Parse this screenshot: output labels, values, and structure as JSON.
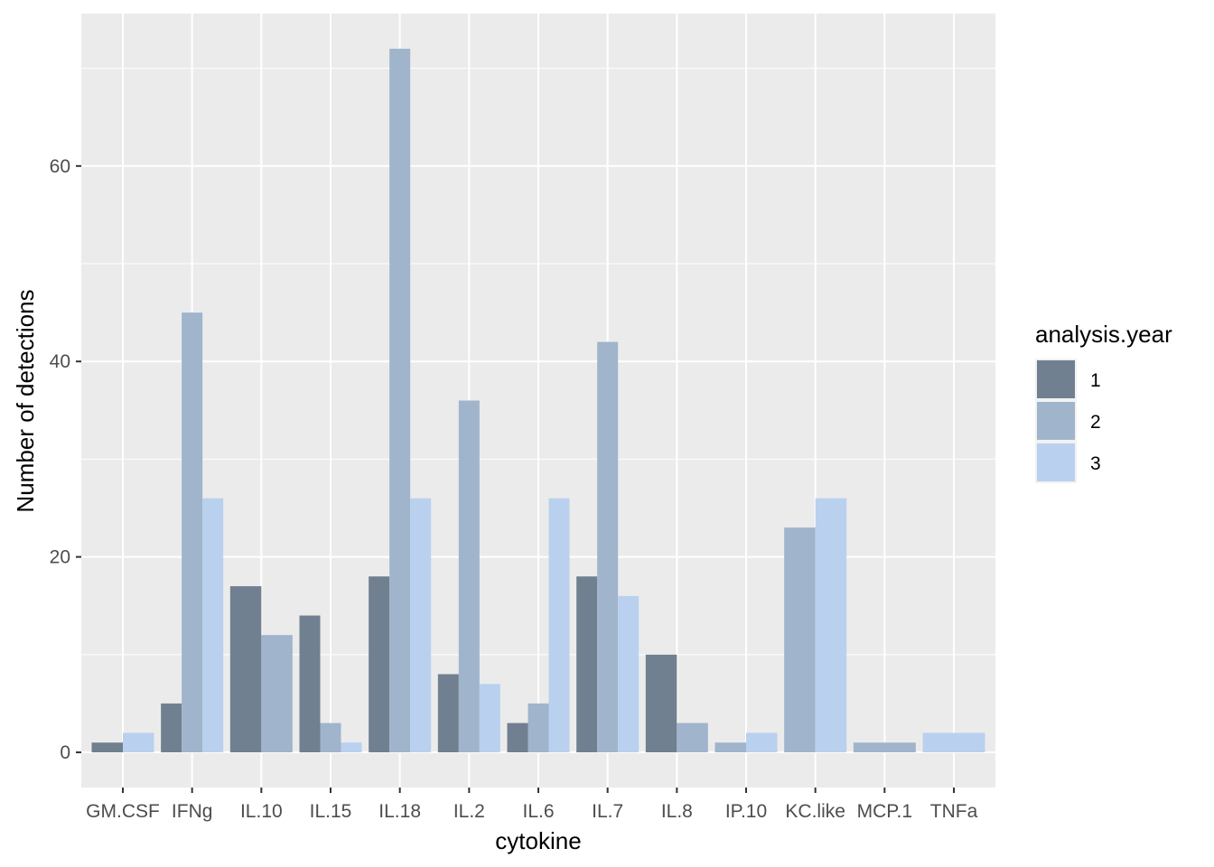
{
  "chart_data": {
    "type": "bar",
    "xlabel": "cytokine",
    "ylabel": "Number of detections",
    "ylim": [
      -3.6,
      75.6
    ],
    "yticks": [
      0,
      20,
      40,
      60
    ],
    "grid": true,
    "legend": {
      "title": "analysis.year",
      "placement": "right"
    },
    "series_colors": [
      "#708090",
      "#A0B4CC",
      "#B9D1EE"
    ],
    "categories": [
      "GM.CSF",
      "IFNg",
      "IL.10",
      "IL.15",
      "IL.18",
      "IL.2",
      "IL.6",
      "IL.7",
      "IL.8",
      "IP.10",
      "KC.like",
      "MCP.1",
      "TNFa"
    ],
    "groups": [
      {
        "category": "GM.CSF",
        "bars": [
          {
            "series": "1",
            "value": 1
          },
          {
            "series": "3",
            "value": 2
          }
        ]
      },
      {
        "category": "IFNg",
        "bars": [
          {
            "series": "1",
            "value": 5
          },
          {
            "series": "2",
            "value": 45
          },
          {
            "series": "3",
            "value": 26
          }
        ]
      },
      {
        "category": "IL.10",
        "bars": [
          {
            "series": "1",
            "value": 17
          },
          {
            "series": "2",
            "value": 12
          }
        ]
      },
      {
        "category": "IL.15",
        "bars": [
          {
            "series": "1",
            "value": 14
          },
          {
            "series": "2",
            "value": 3
          },
          {
            "series": "3",
            "value": 1
          }
        ]
      },
      {
        "category": "IL.18",
        "bars": [
          {
            "series": "1",
            "value": 18
          },
          {
            "series": "2",
            "value": 72
          },
          {
            "series": "3",
            "value": 26
          }
        ]
      },
      {
        "category": "IL.2",
        "bars": [
          {
            "series": "1",
            "value": 8
          },
          {
            "series": "2",
            "value": 36
          },
          {
            "series": "3",
            "value": 7
          }
        ]
      },
      {
        "category": "IL.6",
        "bars": [
          {
            "series": "1",
            "value": 3
          },
          {
            "series": "2",
            "value": 5
          },
          {
            "series": "3",
            "value": 26
          }
        ]
      },
      {
        "category": "IL.7",
        "bars": [
          {
            "series": "1",
            "value": 18
          },
          {
            "series": "2",
            "value": 42
          },
          {
            "series": "3",
            "value": 16
          }
        ]
      },
      {
        "category": "IL.8",
        "bars": [
          {
            "series": "1",
            "value": 10
          },
          {
            "series": "2",
            "value": 3
          }
        ]
      },
      {
        "category": "IP.10",
        "bars": [
          {
            "series": "2",
            "value": 1
          },
          {
            "series": "3",
            "value": 2
          }
        ]
      },
      {
        "category": "KC.like",
        "bars": [
          {
            "series": "2",
            "value": 23
          },
          {
            "series": "3",
            "value": 26
          }
        ]
      },
      {
        "category": "MCP.1",
        "bars": [
          {
            "series": "2",
            "value": 1
          }
        ]
      },
      {
        "category": "TNFa",
        "bars": [
          {
            "series": "3",
            "value": 2
          }
        ]
      }
    ],
    "series": [
      {
        "name": "1"
      },
      {
        "name": "2"
      },
      {
        "name": "3"
      }
    ]
  }
}
